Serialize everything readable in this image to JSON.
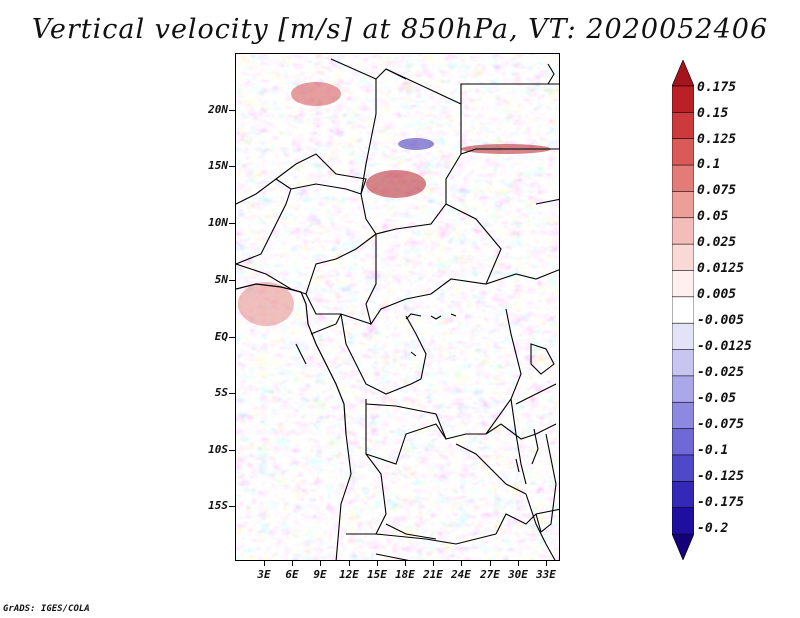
{
  "title": "Vertical velocity [m/s] at 850hPa, VT: 2020052406",
  "map": {
    "description_tag": "vertical-velocity-field",
    "positive_color": "#c0282c",
    "negative_color": "#3b3bd0"
  },
  "axes": {
    "lat_labels": [
      "20N",
      "15N",
      "10N",
      "5N",
      "EQ",
      "5S",
      "10S",
      "15S"
    ],
    "lon_labels": [
      "3E",
      "6E",
      "9E",
      "12E",
      "15E",
      "18E",
      "21E",
      "24E",
      "27E",
      "30E",
      "33E"
    ]
  },
  "colorbar": {
    "levels": [
      "0.175",
      "0.15",
      "0.125",
      "0.1",
      "0.075",
      "0.05",
      "0.025",
      "0.0125",
      "0.005",
      "-0.005",
      "-0.0125",
      "-0.025",
      "-0.05",
      "-0.075",
      "-0.1",
      "-0.125",
      "-0.175",
      "-0.2"
    ],
    "colors": [
      "#a5141c",
      "#bb2027",
      "#cd3a3b",
      "#da5a58",
      "#e37c78",
      "#ec9e99",
      "#f3bdb9",
      "#f8d9d6",
      "#fdf0ef",
      "#ffffff",
      "#e3e2f7",
      "#c8c6f0",
      "#aaa8e8",
      "#8d89e0",
      "#6e69d6",
      "#4f49ca",
      "#3328b8",
      "#1f0fa0",
      "#140078"
    ]
  },
  "credit": "GrADS: IGES/COLA"
}
